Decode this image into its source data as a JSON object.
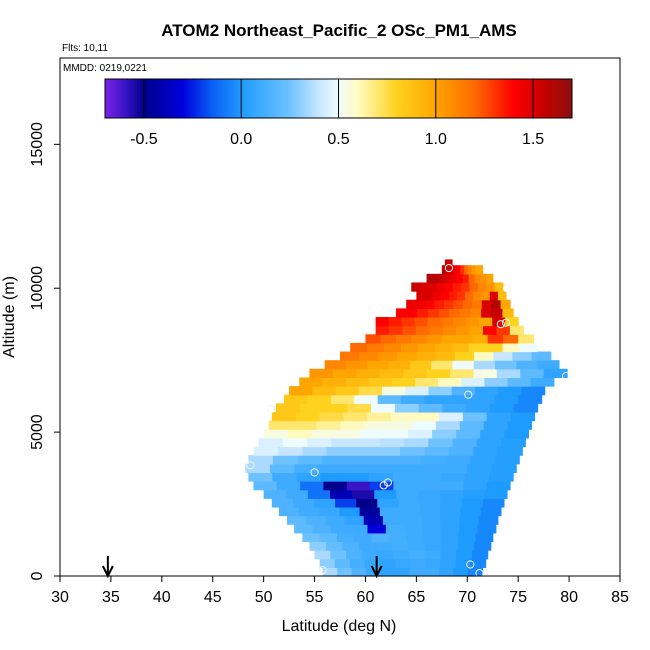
{
  "chart_data": {
    "type": "heatmap",
    "title": "ATOM2 Northeast_Pacific_2 OSc_PM1_AMS",
    "subtitle_flights": "Flts: 10,11",
    "subtitle_dates": "MMDD: 0219,0221",
    "xlabel": "Latitude (deg N)",
    "ylabel": "Altitude (m)",
    "xlim": [
      30,
      85
    ],
    "ylim": [
      0,
      18000
    ],
    "x_ticks": [
      "30",
      "35",
      "40",
      "45",
      "50",
      "55",
      "60",
      "65",
      "70",
      "75",
      "80",
      "85"
    ],
    "y_ticks": [
      "0",
      "5000",
      "10000",
      "15000"
    ],
    "colorbar": {
      "range": [
        -0.7,
        1.7
      ],
      "ticks": [
        "-0.5",
        "0.0",
        "0.5",
        "1.0",
        "1.5"
      ],
      "stops": [
        {
          "v": -0.7,
          "c": "#7b22e6"
        },
        {
          "v": -0.6,
          "c": "#3b14c8"
        },
        {
          "v": -0.5,
          "c": "#00008b"
        },
        {
          "v": -0.3,
          "c": "#0000dc"
        },
        {
          "v": -0.15,
          "c": "#0a5ef5"
        },
        {
          "v": 0.0,
          "c": "#1e9bff"
        },
        {
          "v": 0.25,
          "c": "#6ec2ff"
        },
        {
          "v": 0.4,
          "c": "#c8e6ff"
        },
        {
          "v": 0.5,
          "c": "#eefbff"
        },
        {
          "v": 0.6,
          "c": "#fffbc0"
        },
        {
          "v": 0.8,
          "c": "#ffd21e"
        },
        {
          "v": 1.0,
          "c": "#ffa500"
        },
        {
          "v": 1.2,
          "c": "#ff6a00"
        },
        {
          "v": 1.4,
          "c": "#ff0000"
        },
        {
          "v": 1.55,
          "c": "#c80000"
        },
        {
          "v": 1.7,
          "c": "#8b1010"
        }
      ]
    },
    "layers": [
      {
        "alt": 150,
        "x0": 55.8,
        "x1": 71.5,
        "vals": [
          0.35,
          0.25,
          0.15,
          0.08,
          0.05,
          0.05,
          0.1,
          0.1,
          0.05,
          0.0,
          -0.05
        ]
      },
      {
        "alt": 450,
        "x0": 55.5,
        "x1": 71.8,
        "vals": [
          0.3,
          0.2,
          0.12,
          0.08,
          0.05,
          0.08,
          0.1,
          0.08,
          0.05,
          0.0,
          -0.05
        ]
      },
      {
        "alt": 750,
        "x0": 55.0,
        "x1": 72.0,
        "vals": [
          0.35,
          0.25,
          0.15,
          0.1,
          0.08,
          0.1,
          0.12,
          0.1,
          0.05,
          0.0,
          -0.05
        ]
      },
      {
        "alt": 1050,
        "x0": 54.5,
        "x1": 72.3,
        "vals": [
          0.3,
          0.22,
          0.15,
          0.1,
          0.1,
          0.12,
          0.1,
          0.08,
          0.05,
          0.0,
          -0.05
        ]
      },
      {
        "alt": 1350,
        "x0": 53.8,
        "x1": 72.5,
        "vals": [
          0.25,
          0.2,
          0.12,
          0.1,
          0.15,
          0.12,
          0.1,
          0.08,
          0.05,
          0.0,
          -0.05
        ]
      },
      {
        "alt": 1650,
        "x0": 53.0,
        "x1": 72.8,
        "vals": [
          0.2,
          0.15,
          0.1,
          0.1,
          -0.3,
          0.12,
          0.1,
          0.08,
          0.05,
          0.0,
          -0.05
        ]
      },
      {
        "alt": 1950,
        "x0": 52.3,
        "x1": 73.0,
        "vals": [
          0.2,
          0.15,
          0.1,
          0.05,
          -0.4,
          0.1,
          0.1,
          0.08,
          0.05,
          0.0,
          -0.05
        ]
      },
      {
        "alt": 2250,
        "x0": 51.5,
        "x1": 73.3,
        "vals": [
          0.15,
          0.1,
          0.08,
          0.0,
          -0.45,
          0.1,
          0.1,
          0.08,
          0.05,
          0.0,
          -0.05
        ]
      },
      {
        "alt": 2550,
        "x0": 50.8,
        "x1": 73.6,
        "vals": [
          0.15,
          0.1,
          0.05,
          -0.2,
          -0.5,
          0.05,
          0.1,
          0.08,
          0.05,
          0.0,
          -0.05
        ]
      },
      {
        "alt": 2850,
        "x0": 50.0,
        "x1": 73.9,
        "vals": [
          0.15,
          0.1,
          -0.1,
          -0.4,
          -0.55,
          0.0,
          0.1,
          0.08,
          0.05,
          0.02,
          0.0
        ]
      },
      {
        "alt": 3150,
        "x0": 49.0,
        "x1": 74.2,
        "vals": [
          0.2,
          0.1,
          -0.1,
          -0.5,
          -0.6,
          -0.2,
          0.1,
          0.1,
          0.1,
          0.05,
          0.0
        ]
      },
      {
        "alt": 3450,
        "x0": 48.5,
        "x1": 74.5,
        "vals": [
          0.25,
          0.1,
          0.05,
          0.0,
          0.0,
          0.05,
          0.1,
          0.1,
          0.08,
          0.05,
          0.02
        ]
      },
      {
        "alt": 3750,
        "x0": 48.2,
        "x1": 74.8,
        "vals": [
          0.35,
          0.2,
          0.12,
          0.1,
          0.1,
          0.1,
          0.1,
          0.1,
          0.1,
          0.05,
          0.02
        ]
      },
      {
        "alt": 4050,
        "x0": 48.5,
        "x1": 75.1,
        "vals": [
          0.35,
          0.25,
          0.2,
          0.15,
          0.15,
          0.15,
          0.15,
          0.12,
          0.1,
          0.05,
          0.02
        ]
      },
      {
        "alt": 4350,
        "x0": 49.0,
        "x1": 75.4,
        "vals": [
          0.45,
          0.4,
          0.35,
          0.3,
          0.3,
          0.3,
          0.25,
          0.2,
          0.15,
          0.05,
          0.02
        ]
      },
      {
        "alt": 4650,
        "x0": 49.5,
        "x1": 75.7,
        "vals": [
          0.45,
          0.5,
          0.45,
          0.4,
          0.4,
          0.38,
          0.35,
          0.25,
          0.15,
          0.05,
          0.02
        ]
      },
      {
        "alt": 4950,
        "x0": 50.0,
        "x1": 76.0,
        "vals": [
          0.55,
          0.6,
          0.55,
          0.55,
          0.5,
          0.5,
          0.45,
          0.3,
          0.2,
          0.05,
          0.0
        ]
      },
      {
        "alt": 5250,
        "x0": 50.5,
        "x1": 76.3,
        "vals": [
          0.7,
          0.7,
          0.65,
          0.6,
          0.55,
          0.55,
          0.5,
          0.35,
          0.2,
          0.05,
          0.0
        ]
      },
      {
        "alt": 5550,
        "x0": 50.8,
        "x1": 76.6,
        "vals": [
          0.85,
          0.8,
          0.75,
          0.7,
          0.65,
          0.6,
          0.6,
          0.45,
          0.25,
          0.05,
          0.0
        ]
      },
      {
        "alt": 5850,
        "x0": 51.2,
        "x1": 76.9,
        "vals": [
          0.85,
          0.8,
          0.8,
          0.75,
          0.5,
          0.3,
          0.2,
          0.1,
          0.05,
          0.0,
          -0.05
        ]
      },
      {
        "alt": 6150,
        "x0": 52.0,
        "x1": 77.3,
        "vals": [
          0.85,
          0.8,
          0.7,
          0.5,
          0.2,
          0.1,
          0.05,
          0.05,
          0.05,
          0.0,
          -0.05
        ]
      },
      {
        "alt": 6450,
        "x0": 52.5,
        "x1": 77.6,
        "vals": [
          1.0,
          0.9,
          0.85,
          0.75,
          0.55,
          0.45,
          0.3,
          0.15,
          0.05,
          0.0,
          -0.05
        ]
      },
      {
        "alt": 6750,
        "x0": 53.5,
        "x1": 78.5,
        "vals": [
          1.0,
          0.95,
          0.9,
          0.85,
          0.8,
          0.7,
          0.6,
          0.45,
          0.3,
          0.2,
          0.1
        ]
      },
      {
        "alt": 7050,
        "x0": 54.5,
        "x1": 79.8,
        "vals": [
          1.05,
          1.0,
          0.95,
          0.9,
          0.85,
          0.8,
          0.7,
          0.55,
          0.35,
          0.2,
          0.05
        ]
      },
      {
        "alt": 7350,
        "x0": 56.0,
        "x1": 79.0,
        "vals": [
          1.1,
          1.05,
          1.0,
          0.95,
          0.85,
          0.7,
          0.5,
          0.35,
          0.25,
          0.15,
          0.1
        ]
      },
      {
        "alt": 7650,
        "x0": 57.5,
        "x1": 78.2,
        "vals": [
          1.15,
          1.1,
          1.05,
          1.0,
          0.95,
          0.9,
          0.8,
          0.6,
          0.4,
          0.3,
          0.2
        ]
      },
      {
        "alt": 7950,
        "x0": 58.5,
        "x1": 76.8,
        "vals": [
          1.2,
          1.15,
          1.1,
          1.05,
          1.0,
          0.95,
          0.9,
          0.8,
          0.8,
          0.6,
          0.5
        ]
      },
      {
        "alt": 8250,
        "x0": 60.0,
        "x1": 76.5,
        "vals": [
          1.25,
          1.2,
          1.15,
          1.1,
          1.05,
          1.0,
          1.0,
          0.95,
          1.3,
          1.2,
          0.7
        ]
      },
      {
        "alt": 8550,
        "x0": 61.0,
        "x1": 75.5,
        "vals": [
          1.35,
          1.3,
          1.25,
          1.2,
          1.15,
          1.1,
          1.05,
          1.0,
          1.4,
          1.3,
          0.7
        ]
      },
      {
        "alt": 8850,
        "x0": 61.0,
        "x1": 75.0,
        "vals": [
          1.4,
          1.35,
          1.3,
          1.25,
          1.2,
          1.15,
          1.1,
          1.05,
          1.0,
          1.5,
          0.8
        ]
      },
      {
        "alt": 9150,
        "x0": 63.0,
        "x1": 74.5,
        "vals": [
          1.4,
          1.4,
          1.35,
          1.3,
          1.25,
          1.2,
          1.15,
          1.1,
          1.5,
          1.55,
          0.9
        ]
      },
      {
        "alt": 9450,
        "x0": 64.0,
        "x1": 74.2,
        "vals": [
          1.45,
          1.45,
          1.4,
          1.35,
          1.3,
          1.25,
          1.2,
          1.15,
          1.5,
          1.6,
          1.0
        ]
      },
      {
        "alt": 9750,
        "x0": 65.0,
        "x1": 73.8,
        "vals": [
          1.5,
          1.5,
          1.45,
          1.4,
          1.35,
          1.3,
          1.2,
          1.1,
          1.05,
          1.5,
          0.9
        ]
      },
      {
        "alt": 10050,
        "x0": 64.5,
        "x1": 73.5,
        "vals": [
          1.55,
          1.5,
          1.5,
          1.45,
          1.4,
          1.35,
          1.3,
          1.2,
          1.1,
          1.05,
          0.9
        ]
      },
      {
        "alt": 10350,
        "x0": 66.0,
        "x1": 72.5,
        "vals": [
          1.6,
          1.6,
          1.55,
          1.5,
          1.45,
          1.4,
          1.35,
          1.2,
          1.1,
          1.05,
          1.0
        ]
      },
      {
        "alt": 10650,
        "x0": 67.5,
        "x1": 71.5,
        "vals": [
          1.6,
          1.55,
          1.5,
          1.45,
          1.4,
          1.3,
          1.2,
          1.1,
          1.05,
          1.0,
          1.0
        ]
      },
      {
        "alt": 10850,
        "x0": 67.8,
        "x1": 68.5,
        "vals": [
          1.55,
          1.55
        ]
      }
    ],
    "sample_points": [
      {
        "x": 48.7,
        "y": 3850
      },
      {
        "x": 50.7,
        "y": 5800
      },
      {
        "x": 55.0,
        "y": 3600
      },
      {
        "x": 55.8,
        "y": 200
      },
      {
        "x": 61.8,
        "y": 3150
      },
      {
        "x": 62.2,
        "y": 3250
      },
      {
        "x": 68.2,
        "y": 10700
      },
      {
        "x": 70.1,
        "y": 6300
      },
      {
        "x": 70.3,
        "y": 400
      },
      {
        "x": 71.0,
        "y": 7050
      },
      {
        "x": 71.2,
        "y": 100
      },
      {
        "x": 73.3,
        "y": 8750
      },
      {
        "x": 73.8,
        "y": 8800
      },
      {
        "x": 73.9,
        "y": 10000
      },
      {
        "x": 79.7,
        "y": 6950
      }
    ],
    "arrows_lat": [
      34.7,
      61.1
    ]
  }
}
